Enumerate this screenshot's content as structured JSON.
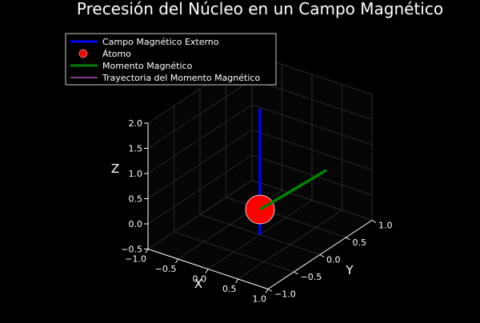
{
  "chart_data": {
    "type": "line",
    "projection": "3d",
    "title": "Precesión del Núcleo en un Campo Magnético",
    "xlabel": "X",
    "ylabel": "Y",
    "zlabel": "Z",
    "xlim": [
      -1.0,
      1.0
    ],
    "ylim": [
      -1.0,
      1.0
    ],
    "zlim": [
      -0.5,
      2.0
    ],
    "xticks": [
      -1.0,
      -0.5,
      0.0,
      0.5,
      1.0
    ],
    "yticks": [
      -1.0,
      -0.5,
      0.0,
      0.5,
      1.0
    ],
    "zticks": [
      -0.5,
      0.0,
      0.5,
      1.0,
      1.5,
      2.0
    ],
    "xtick_labels": [
      "−1.0",
      "−0.5",
      "0.0",
      "0.5",
      "1.0"
    ],
    "ytick_labels": [
      "−1.0",
      "−0.5",
      "0.0",
      "0.5",
      "1.0"
    ],
    "ztick_labels": [
      "−0.5",
      "0.0",
      "0.5",
      "1.0",
      "1.5",
      "2.0"
    ],
    "grid": true,
    "legend_position": "top-left",
    "series": [
      {
        "name": "Campo Magnético Externo",
        "kind": "line",
        "color": "#0000ff",
        "x": [
          0,
          0
        ],
        "y": [
          0,
          0
        ],
        "z": [
          -0.5,
          2.0
        ]
      },
      {
        "name": "Átomo",
        "kind": "marker",
        "color": "#ff0000",
        "x": [
          0
        ],
        "y": [
          0
        ],
        "z": [
          0
        ]
      },
      {
        "name": "Momento Magnético",
        "kind": "line",
        "color": "#008000",
        "x": [
          0,
          0.5
        ],
        "y": [
          0,
          0.7
        ],
        "z": [
          0,
          0.5
        ]
      },
      {
        "name": "Trayectoria del Momento Magnético",
        "kind": "line",
        "color": "#ff77ff",
        "x": [],
        "y": [],
        "z": []
      }
    ]
  }
}
